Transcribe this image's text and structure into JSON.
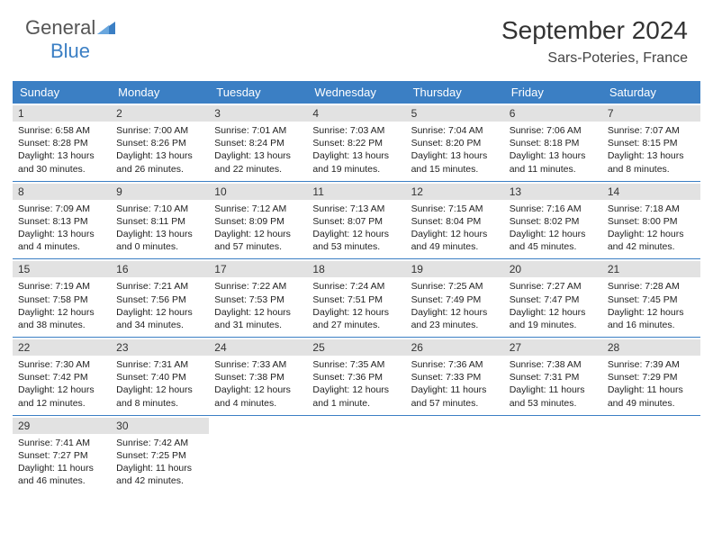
{
  "brand": {
    "general": "General",
    "blue": "Blue"
  },
  "title": "September 2024",
  "location": "Sars-Poteries, France",
  "colors": {
    "header_bg": "#3b7fc4",
    "header_text": "#ffffff",
    "daynum_bg": "#e2e2e2",
    "week_border": "#3b7fc4",
    "text": "#222222",
    "title_text": "#333333"
  },
  "day_names": [
    "Sunday",
    "Monday",
    "Tuesday",
    "Wednesday",
    "Thursday",
    "Friday",
    "Saturday"
  ],
  "days": [
    {
      "n": "1",
      "sunrise": "6:58 AM",
      "sunset": "8:28 PM",
      "dl1": "Daylight: 13 hours",
      "dl2": "and 30 minutes."
    },
    {
      "n": "2",
      "sunrise": "7:00 AM",
      "sunset": "8:26 PM",
      "dl1": "Daylight: 13 hours",
      "dl2": "and 26 minutes."
    },
    {
      "n": "3",
      "sunrise": "7:01 AM",
      "sunset": "8:24 PM",
      "dl1": "Daylight: 13 hours",
      "dl2": "and 22 minutes."
    },
    {
      "n": "4",
      "sunrise": "7:03 AM",
      "sunset": "8:22 PM",
      "dl1": "Daylight: 13 hours",
      "dl2": "and 19 minutes."
    },
    {
      "n": "5",
      "sunrise": "7:04 AM",
      "sunset": "8:20 PM",
      "dl1": "Daylight: 13 hours",
      "dl2": "and 15 minutes."
    },
    {
      "n": "6",
      "sunrise": "7:06 AM",
      "sunset": "8:18 PM",
      "dl1": "Daylight: 13 hours",
      "dl2": "and 11 minutes."
    },
    {
      "n": "7",
      "sunrise": "7:07 AM",
      "sunset": "8:15 PM",
      "dl1": "Daylight: 13 hours",
      "dl2": "and 8 minutes."
    },
    {
      "n": "8",
      "sunrise": "7:09 AM",
      "sunset": "8:13 PM",
      "dl1": "Daylight: 13 hours",
      "dl2": "and 4 minutes."
    },
    {
      "n": "9",
      "sunrise": "7:10 AM",
      "sunset": "8:11 PM",
      "dl1": "Daylight: 13 hours",
      "dl2": "and 0 minutes."
    },
    {
      "n": "10",
      "sunrise": "7:12 AM",
      "sunset": "8:09 PM",
      "dl1": "Daylight: 12 hours",
      "dl2": "and 57 minutes."
    },
    {
      "n": "11",
      "sunrise": "7:13 AM",
      "sunset": "8:07 PM",
      "dl1": "Daylight: 12 hours",
      "dl2": "and 53 minutes."
    },
    {
      "n": "12",
      "sunrise": "7:15 AM",
      "sunset": "8:04 PM",
      "dl1": "Daylight: 12 hours",
      "dl2": "and 49 minutes."
    },
    {
      "n": "13",
      "sunrise": "7:16 AM",
      "sunset": "8:02 PM",
      "dl1": "Daylight: 12 hours",
      "dl2": "and 45 minutes."
    },
    {
      "n": "14",
      "sunrise": "7:18 AM",
      "sunset": "8:00 PM",
      "dl1": "Daylight: 12 hours",
      "dl2": "and 42 minutes."
    },
    {
      "n": "15",
      "sunrise": "7:19 AM",
      "sunset": "7:58 PM",
      "dl1": "Daylight: 12 hours",
      "dl2": "and 38 minutes."
    },
    {
      "n": "16",
      "sunrise": "7:21 AM",
      "sunset": "7:56 PM",
      "dl1": "Daylight: 12 hours",
      "dl2": "and 34 minutes."
    },
    {
      "n": "17",
      "sunrise": "7:22 AM",
      "sunset": "7:53 PM",
      "dl1": "Daylight: 12 hours",
      "dl2": "and 31 minutes."
    },
    {
      "n": "18",
      "sunrise": "7:24 AM",
      "sunset": "7:51 PM",
      "dl1": "Daylight: 12 hours",
      "dl2": "and 27 minutes."
    },
    {
      "n": "19",
      "sunrise": "7:25 AM",
      "sunset": "7:49 PM",
      "dl1": "Daylight: 12 hours",
      "dl2": "and 23 minutes."
    },
    {
      "n": "20",
      "sunrise": "7:27 AM",
      "sunset": "7:47 PM",
      "dl1": "Daylight: 12 hours",
      "dl2": "and 19 minutes."
    },
    {
      "n": "21",
      "sunrise": "7:28 AM",
      "sunset": "7:45 PM",
      "dl1": "Daylight: 12 hours",
      "dl2": "and 16 minutes."
    },
    {
      "n": "22",
      "sunrise": "7:30 AM",
      "sunset": "7:42 PM",
      "dl1": "Daylight: 12 hours",
      "dl2": "and 12 minutes."
    },
    {
      "n": "23",
      "sunrise": "7:31 AM",
      "sunset": "7:40 PM",
      "dl1": "Daylight: 12 hours",
      "dl2": "and 8 minutes."
    },
    {
      "n": "24",
      "sunrise": "7:33 AM",
      "sunset": "7:38 PM",
      "dl1": "Daylight: 12 hours",
      "dl2": "and 4 minutes."
    },
    {
      "n": "25",
      "sunrise": "7:35 AM",
      "sunset": "7:36 PM",
      "dl1": "Daylight: 12 hours",
      "dl2": "and 1 minute."
    },
    {
      "n": "26",
      "sunrise": "7:36 AM",
      "sunset": "7:33 PM",
      "dl1": "Daylight: 11 hours",
      "dl2": "and 57 minutes."
    },
    {
      "n": "27",
      "sunrise": "7:38 AM",
      "sunset": "7:31 PM",
      "dl1": "Daylight: 11 hours",
      "dl2": "and 53 minutes."
    },
    {
      "n": "28",
      "sunrise": "7:39 AM",
      "sunset": "7:29 PM",
      "dl1": "Daylight: 11 hours",
      "dl2": "and 49 minutes."
    },
    {
      "n": "29",
      "sunrise": "7:41 AM",
      "sunset": "7:27 PM",
      "dl1": "Daylight: 11 hours",
      "dl2": "and 46 minutes."
    },
    {
      "n": "30",
      "sunrise": "7:42 AM",
      "sunset": "7:25 PM",
      "dl1": "Daylight: 11 hours",
      "dl2": "and 42 minutes."
    }
  ],
  "labels": {
    "sunrise_prefix": "Sunrise: ",
    "sunset_prefix": "Sunset: "
  }
}
